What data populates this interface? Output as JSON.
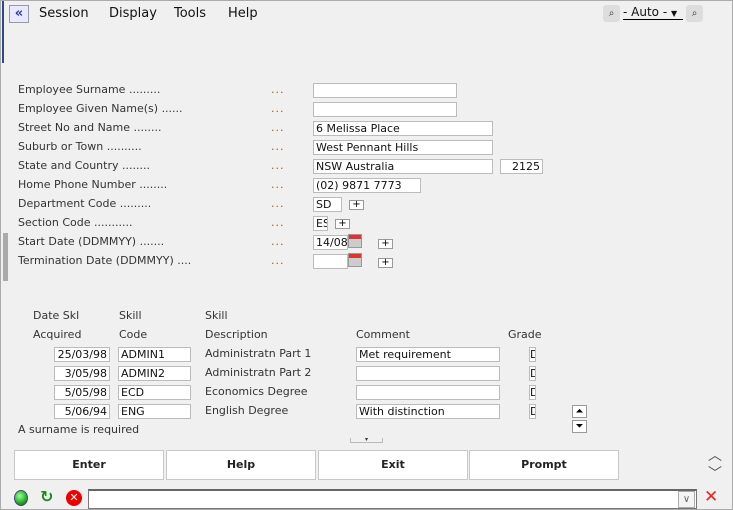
{
  "menu": {
    "items": [
      "Session",
      "Display",
      "Tools",
      "Help"
    ],
    "zoom": "- Auto -"
  },
  "form": {
    "dots": "...",
    "fields": [
      {
        "label": "Employee Surname .........",
        "value": ""
      },
      {
        "label": "Employee Given Name(s) ......",
        "value": ""
      },
      {
        "label": "Street No and Name ........",
        "value": "6 Melissa Place"
      },
      {
        "label": "Suburb or Town ..........",
        "value": "West Pennant Hills"
      },
      {
        "label": "State and Country ........",
        "value": "NSW Australia",
        "postcode": "2125"
      },
      {
        "label": "Home Phone Number ........",
        "value": "(02) 9871 7773"
      },
      {
        "label": "Department Code .........",
        "value": "SD"
      },
      {
        "label": "Section Code ...........",
        "value": "ES"
      },
      {
        "label": "Start Date (DDMMYY) .......",
        "value": "14/08"
      },
      {
        "label": "Termination Date (DDMMYY) ....",
        "value": ""
      }
    ],
    "plus": "+"
  },
  "skills": {
    "headers1": [
      "Date Skl",
      "Skill",
      "Skill"
    ],
    "headers2": [
      "Acquired",
      "Code",
      "Description",
      "Comment",
      "Grade"
    ],
    "rows": [
      {
        "date": "25/03/98",
        "code": "ADMIN1",
        "desc": "Administratn Part 1",
        "comment": "Met requirement",
        "grade": "D"
      },
      {
        "date": "3/05/98",
        "code": "ADMIN2",
        "desc": "Administratn Part 2",
        "comment": "",
        "grade": "D"
      },
      {
        "date": "5/05/98",
        "code": "ECD",
        "desc": "Economics Degree",
        "comment": "",
        "grade": "D"
      },
      {
        "date": "5/06/94",
        "code": "ENG",
        "desc": "English Degree",
        "comment": "With distinction",
        "grade": "D"
      }
    ]
  },
  "message": "A surname is required",
  "buttons": [
    "Enter",
    "Help",
    "Exit",
    "Prompt"
  ],
  "command": {
    "value": ""
  }
}
